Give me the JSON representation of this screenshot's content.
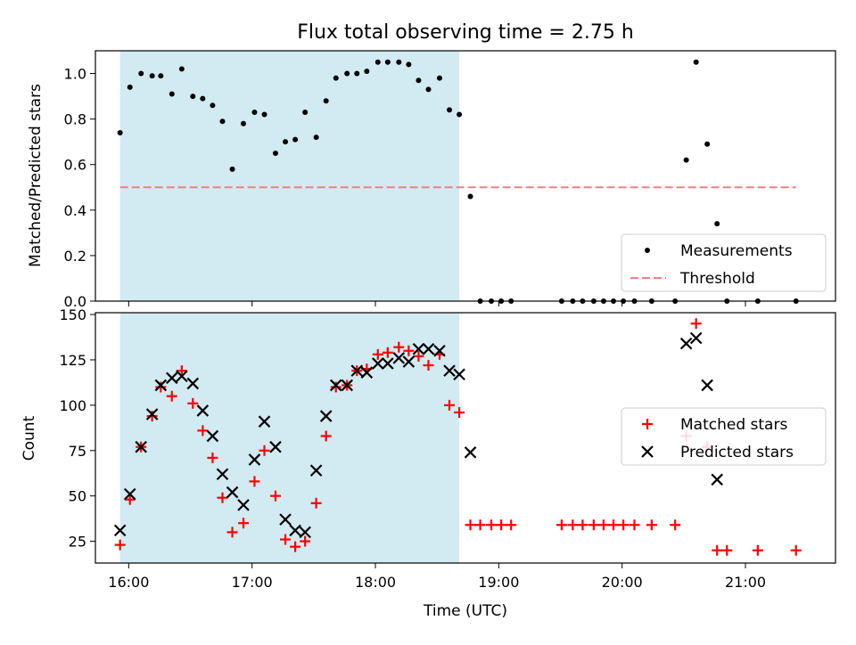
{
  "title": "Flux total observing time = 2.75 h",
  "x_axis": {
    "label": "Time (UTC)",
    "ticks": [
      {
        "value": 16.0,
        "label": "16:00"
      },
      {
        "value": 17.0,
        "label": "17:00"
      },
      {
        "value": 18.0,
        "label": "18:00"
      },
      {
        "value": 19.0,
        "label": "19:00"
      },
      {
        "value": 20.0,
        "label": "20:00"
      },
      {
        "value": 21.0,
        "label": "21:00"
      }
    ]
  },
  "colors": {
    "shade": "#add8e6",
    "measurement": "#000000",
    "threshold": "#f08080",
    "matched": "#ff0000",
    "predicted": "#000000"
  },
  "chart_data": [
    {
      "type": "scatter",
      "title": "Flux total observing time = 2.75 h",
      "xlabel": "",
      "ylabel": "Matched/Predicted stars",
      "xlim": [
        15.73,
        21.73
      ],
      "ylim": [
        0.0,
        1.1
      ],
      "yticks": [
        0.0,
        0.2,
        0.4,
        0.6,
        0.8,
        1.0
      ],
      "shaded_interval": [
        15.93,
        18.68
      ],
      "legend_position": "lower right",
      "series": [
        {
          "name": "Measurements",
          "marker": "dot",
          "x": [
            15.93,
            16.01,
            16.1,
            16.19,
            16.26,
            16.35,
            16.43,
            16.52,
            16.6,
            16.68,
            16.76,
            16.84,
            16.93,
            17.02,
            17.1,
            17.19,
            17.27,
            17.35,
            17.43,
            17.52,
            17.6,
            17.68,
            17.77,
            17.85,
            17.93,
            18.02,
            18.1,
            18.19,
            18.27,
            18.35,
            18.43,
            18.52,
            18.6,
            18.68,
            18.77,
            18.85,
            18.94,
            19.02,
            19.1,
            19.51,
            19.6,
            19.68,
            19.77,
            19.85,
            19.93,
            20.01,
            20.1,
            20.24,
            20.43,
            20.52,
            20.6,
            20.69,
            20.77,
            20.85,
            21.1,
            21.41
          ],
          "y": [
            0.74,
            0.94,
            1.0,
            0.99,
            0.99,
            0.91,
            1.02,
            0.9,
            0.89,
            0.86,
            0.79,
            0.58,
            0.78,
            0.83,
            0.82,
            0.65,
            0.7,
            0.71,
            0.83,
            0.72,
            0.88,
            0.98,
            1.0,
            1.0,
            1.01,
            1.05,
            1.05,
            1.05,
            1.04,
            0.97,
            0.93,
            0.98,
            0.84,
            0.82,
            0.46,
            0.0,
            0.0,
            0.0,
            0.0,
            0.0,
            0.0,
            0.0,
            0.0,
            0.0,
            0.0,
            0.0,
            0.0,
            0.0,
            0.0,
            0.62,
            1.05,
            0.69,
            0.34,
            0.0,
            0.0,
            0.0
          ]
        },
        {
          "name": "Threshold",
          "style": "dashed",
          "x": [
            15.93,
            21.41
          ],
          "y": [
            0.5,
            0.5
          ]
        }
      ]
    },
    {
      "type": "scatter",
      "xlabel": "Time (UTC)",
      "ylabel": "Count",
      "xlim": [
        15.73,
        21.73
      ],
      "ylim": [
        13,
        151
      ],
      "yticks": [
        25,
        50,
        75,
        100,
        125,
        150
      ],
      "shaded_interval": [
        15.93,
        18.68
      ],
      "legend_position": "center right",
      "series": [
        {
          "name": "Matched stars",
          "marker": "plus",
          "x": [
            15.93,
            16.01,
            16.1,
            16.19,
            16.26,
            16.35,
            16.43,
            16.52,
            16.6,
            16.68,
            16.76,
            16.84,
            16.93,
            17.02,
            17.1,
            17.19,
            17.27,
            17.35,
            17.43,
            17.52,
            17.6,
            17.68,
            17.77,
            17.85,
            17.93,
            18.02,
            18.1,
            18.19,
            18.27,
            18.35,
            18.43,
            18.52,
            18.6,
            18.68,
            18.77,
            18.85,
            18.94,
            19.02,
            19.1,
            19.51,
            19.6,
            19.68,
            19.77,
            19.85,
            19.93,
            20.01,
            20.1,
            20.24,
            20.43,
            20.52,
            20.6,
            20.69,
            20.77,
            20.85,
            21.1,
            21.41
          ],
          "y": [
            23,
            48,
            77,
            94,
            110,
            105,
            119,
            101,
            86,
            71,
            49,
            30,
            35,
            58,
            75,
            50,
            26,
            22,
            25,
            46,
            83,
            110,
            111,
            119,
            120,
            128,
            129,
            132,
            130,
            127,
            122,
            128,
            100,
            96,
            34,
            34,
            34,
            34,
            34,
            34,
            34,
            34,
            34,
            34,
            34,
            34,
            34,
            34,
            34,
            83,
            145,
            77,
            20,
            20,
            20,
            20
          ]
        },
        {
          "name": "Predicted stars",
          "marker": "x",
          "x": [
            15.93,
            16.01,
            16.1,
            16.19,
            16.26,
            16.35,
            16.43,
            16.52,
            16.6,
            16.68,
            16.76,
            16.84,
            16.93,
            17.02,
            17.1,
            17.19,
            17.27,
            17.35,
            17.43,
            17.52,
            17.6,
            17.68,
            17.77,
            17.85,
            17.93,
            18.02,
            18.1,
            18.19,
            18.27,
            18.35,
            18.43,
            18.52,
            18.6,
            18.68,
            18.77,
            20.52,
            20.6,
            20.69,
            20.77
          ],
          "y": [
            31,
            51,
            77,
            95,
            111,
            115,
            116,
            112,
            97,
            83,
            62,
            52,
            45,
            70,
            91,
            77,
            37,
            31,
            30,
            64,
            94,
            111,
            111,
            119,
            118,
            123,
            123,
            126,
            124,
            131,
            131,
            130,
            119,
            117,
            74,
            134,
            137,
            111,
            59
          ]
        }
      ]
    }
  ]
}
